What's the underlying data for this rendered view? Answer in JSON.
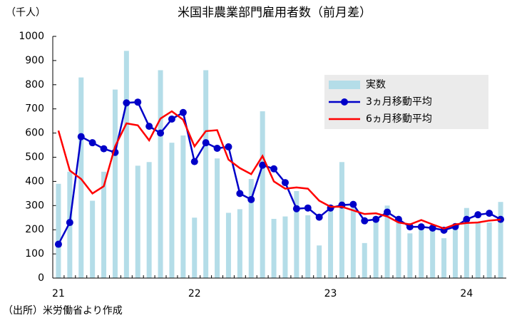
{
  "chart_data": {
    "type": "bar",
    "title": "米国非農業部門雇用者数（前月差）",
    "y_label": "（千人）",
    "source": "（出所）米労働省より作成",
    "categories": [
      "21",
      null,
      null,
      null,
      null,
      null,
      null,
      null,
      null,
      null,
      null,
      null,
      "22",
      null,
      null,
      null,
      null,
      null,
      null,
      null,
      null,
      null,
      null,
      null,
      "23",
      null,
      null,
      null,
      null,
      null,
      null,
      null,
      null,
      null,
      null,
      null,
      "24",
      null,
      null,
      null
    ],
    "ylim": [
      0,
      1000
    ],
    "yticks": [
      0,
      100,
      200,
      300,
      400,
      500,
      600,
      700,
      800,
      900,
      1000
    ],
    "legend": "upper right",
    "series": [
      {
        "name": "実数",
        "type": "bar",
        "color": "#b4dde8",
        "values": [
          390,
          440,
          830,
          320,
          440,
          780,
          940,
          465,
          480,
          860,
          560,
          590,
          250,
          860,
          495,
          270,
          285,
          410,
          690,
          245,
          255,
          360,
          260,
          135,
          300,
          480,
          290,
          145,
          250,
          300,
          240,
          185,
          210,
          220,
          165,
          200,
          290,
          230,
          230,
          315
        ]
      },
      {
        "name": "3ヵ月移動平均",
        "type": "line",
        "markers": true,
        "color": "#0000c8",
        "values": [
          140,
          230,
          585,
          560,
          535,
          520,
          725,
          728,
          628,
          600,
          658,
          685,
          482,
          560,
          537,
          543,
          350,
          325,
          467,
          452,
          395,
          287,
          290,
          252,
          290,
          302,
          305,
          237,
          243,
          273,
          243,
          212,
          212,
          207,
          198,
          213,
          243,
          262,
          268,
          243
        ]
      },
      {
        "name": "6ヵ月移動平均",
        "type": "line",
        "markers": false,
        "color": "#ff0000",
        "values": [
          610,
          445,
          410,
          350,
          380,
          545,
          640,
          632,
          570,
          660,
          690,
          655,
          545,
          608,
          612,
          490,
          455,
          430,
          505,
          400,
          370,
          375,
          370,
          320,
          295,
          295,
          280,
          265,
          268,
          255,
          230,
          222,
          240,
          222,
          205,
          222,
          228,
          230,
          238,
          242
        ]
      }
    ]
  }
}
